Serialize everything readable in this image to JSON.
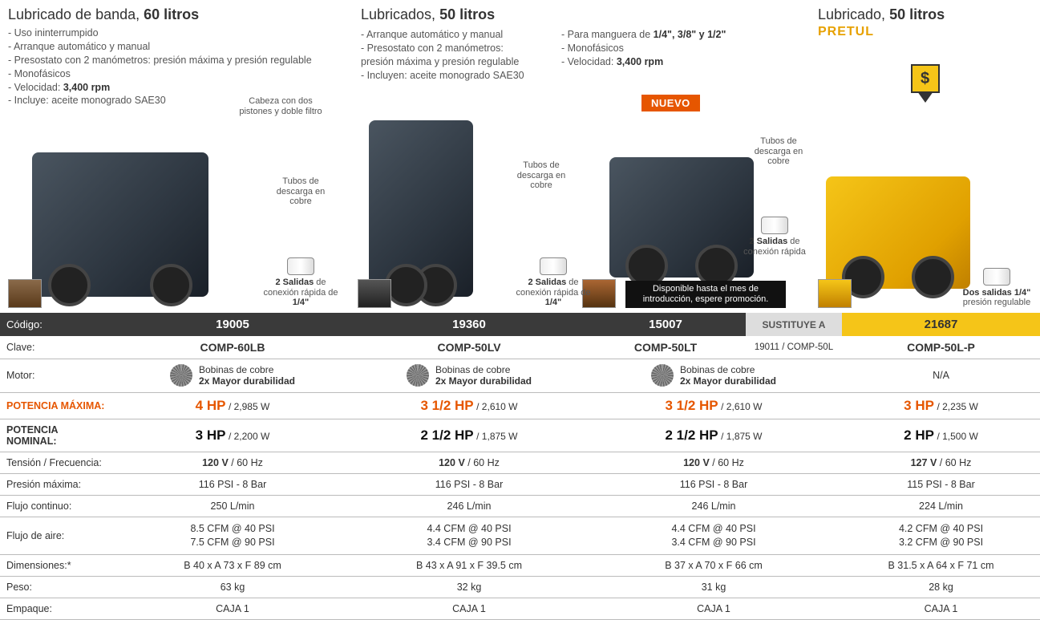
{
  "sections": {
    "s1": {
      "title_light": "Lubricado de banda,",
      "title_bold": "60 litros",
      "bullets": [
        "Uso ininterrumpido",
        "Arranque automático y manual",
        "Presostato con 2 manómetros: presión máxima y presión regulable",
        "Monofásicos",
        "Velocidad: <b>3,400 rpm</b>",
        "Incluye: aceite monogrado SAE30"
      ],
      "anno_head": "Cabeza con dos pistones y doble filtro",
      "anno_tubos": "Tubos de descarga en cobre",
      "anno_salidas": "<b>2 Salidas</b> de conexión rápida de <b>1/4\"</b>"
    },
    "s2": {
      "title_light": "Lubricados,",
      "title_bold": "50 litros",
      "bullets_left": [
        "Arranque automático y manual",
        "Presostato con 2 manómetros: presión máxima y presión regulable",
        "Incluyen: aceite monogrado SAE30"
      ],
      "bullets_right": [
        "Para manguera de <b>1/4\", 3/8\" y 1/2\"</b>",
        "Monofásicos",
        "Velocidad: <b>3,400 rpm</b>"
      ],
      "nuevo": "NUEVO",
      "anno_tubos1": "Tubos de descarga en cobre",
      "anno_salidas1": "<b>2 Salidas</b> de conexión rápida de <b>1/4\"</b>",
      "anno_tubos2": "Tubos de descarga en cobre",
      "anno_salidas2": "<b>2 Salidas</b> de conexión rápida",
      "promo": "Disponible hasta el mes de introducción, espere promoción."
    },
    "s3": {
      "title_light": "Lubricado,",
      "title_bold": "50 litros",
      "brand": "PRETUL",
      "anno_salidas": "<b>Dos salidas 1/4\"</b> presión regulable"
    }
  },
  "table": {
    "labels": {
      "codigo": "Código:",
      "clave": "Clave:",
      "motor": "Motor:",
      "potmax": "POTENCIA MÁXIMA:",
      "potnom": "POTENCIA NOMINAL:",
      "tension": "Tensión / Frecuencia:",
      "presion": "Presión máxima:",
      "flujoc": "Flujo continuo:",
      "flujoa": "Flujo de aire:",
      "dim": "Dimensiones:*",
      "peso": "Peso:",
      "empaque": "Empaque:",
      "sustituye": "SUSTITUYE A"
    },
    "motor_text": {
      "l1": "Bobinas de cobre",
      "l2": "2x Mayor durabilidad"
    },
    "cols": [
      {
        "codigo": "19005",
        "clave": "COMP-60LB",
        "motor": "coil",
        "na": "",
        "potmax_hp": "4 HP",
        "potmax_w": "/ 2,985 W",
        "potnom_hp": "3 HP",
        "potnom_w": "/ 2,200 W",
        "tension_v": "120 V",
        "tension_hz": "/ 60 Hz",
        "presion": "116 PSI - 8 Bar",
        "flujoc": "250 L/min",
        "flujoa1": "8.5 CFM @ 40 PSI",
        "flujoa2": "7.5 CFM @ 90 PSI",
        "dim": "B 40 x A 73 x F 89 cm",
        "peso": "63 kg",
        "empaque": "CAJA 1"
      },
      {
        "codigo": "19360",
        "clave": "COMP-50LV",
        "motor": "coil",
        "na": "",
        "potmax_hp": "3 1/2 HP",
        "potmax_w": "/ 2,610 W",
        "potnom_hp": "2 1/2 HP",
        "potnom_w": "/ 1,875 W",
        "tension_v": "120 V",
        "tension_hz": "/ 60 Hz",
        "presion": "116 PSI - 8 Bar",
        "flujoc": "246 L/min",
        "flujoa1": "4.4 CFM @ 40 PSI",
        "flujoa2": "3.4 CFM @ 90 PSI",
        "dim": "B 43 x A 91 x F 39.5 cm",
        "peso": "32 kg",
        "empaque": "CAJA 1"
      },
      {
        "codigo": "15007",
        "clave": "COMP-50LT",
        "motor": "coil",
        "na": "",
        "sust": "19011 / COMP-50L",
        "potmax_hp": "3 1/2 HP",
        "potmax_w": "/ 2,610 W",
        "potnom_hp": "2 1/2 HP",
        "potnom_w": "/ 1,875 W",
        "tension_v": "120 V",
        "tension_hz": "/ 60 Hz",
        "presion": "116 PSI - 8 Bar",
        "flujoc": "246 L/min",
        "flujoa1": "4.4 CFM @ 40 PSI",
        "flujoa2": "3.4 CFM @ 90 PSI",
        "dim": "B 37 x A 70 x F 66 cm",
        "peso": "31 kg",
        "empaque": "CAJA 1"
      },
      {
        "codigo": "21687",
        "clave": "COMP-50L-P",
        "motor": "na",
        "na": "N/A",
        "potmax_hp": "3 HP",
        "potmax_w": "/ 2,235 W",
        "potnom_hp": "2 HP",
        "potnom_w": "/ 1,500 W",
        "tension_v": "127 V",
        "tension_hz": "/ 60 Hz",
        "presion": "115 PSI - 8 Bar",
        "flujoc": "224 L/min",
        "flujoa1": "4.2 CFM @ 40 PSI",
        "flujoa2": "3.2 CFM @ 90 PSI",
        "dim": "B 31.5 x A 64 x F 71 cm",
        "peso": "28 kg",
        "empaque": "CAJA 1",
        "yellow": true
      }
    ]
  },
  "colors": {
    "accent_orange": "#e65600",
    "accent_yellow": "#f5c518",
    "row_dark": "#3a3a3a"
  }
}
